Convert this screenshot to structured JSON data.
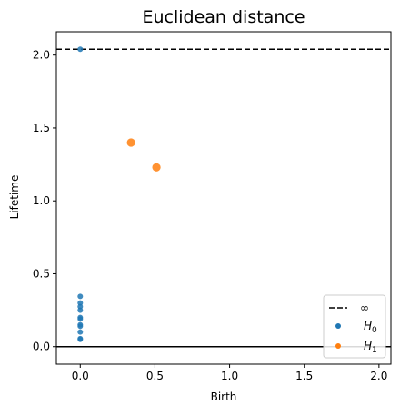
{
  "chart_data": {
    "type": "scatter",
    "title": "Euclidean distance",
    "xlabel": "Birth",
    "ylabel": "Lifetime",
    "xlim": [
      -0.16,
      2.08
    ],
    "ylim": [
      -0.12,
      2.16
    ],
    "xticks": [
      {
        "value": 0.0,
        "label": "0.0"
      },
      {
        "value": 0.5,
        "label": "0.5"
      },
      {
        "value": 1.0,
        "label": "1.0"
      },
      {
        "value": 1.5,
        "label": "1.5"
      },
      {
        "value": 2.0,
        "label": "2.0"
      }
    ],
    "yticks": [
      {
        "value": 0.0,
        "label": "0.0"
      },
      {
        "value": 0.5,
        "label": "0.5"
      },
      {
        "value": 1.0,
        "label": "1.0"
      },
      {
        "value": 1.5,
        "label": "1.5"
      },
      {
        "value": 2.0,
        "label": "2.0"
      }
    ],
    "infinity_line": {
      "y": 2.04,
      "style": "dashed",
      "color": "#000000",
      "label": "∞"
    },
    "zero_line": {
      "y": 0.0,
      "style": "solid",
      "color": "#000000"
    },
    "series": [
      {
        "name": "H0",
        "name_base": "H",
        "name_sub": "0",
        "color": "#1f77b4",
        "points": [
          {
            "x": 0.0,
            "y": 2.04
          },
          {
            "x": 0.0,
            "y": 0.345
          },
          {
            "x": 0.0,
            "y": 0.3
          },
          {
            "x": 0.0,
            "y": 0.275
          },
          {
            "x": 0.0,
            "y": 0.25
          },
          {
            "x": 0.0,
            "y": 0.2
          },
          {
            "x": 0.0,
            "y": 0.19
          },
          {
            "x": 0.0,
            "y": 0.15
          },
          {
            "x": 0.0,
            "y": 0.14
          },
          {
            "x": 0.0,
            "y": 0.1
          },
          {
            "x": 0.0,
            "y": 0.055
          },
          {
            "x": 0.0,
            "y": 0.05
          }
        ]
      },
      {
        "name": "H1",
        "name_base": "H",
        "name_sub": "1",
        "color": "#ff7f0e",
        "points": [
          {
            "x": 0.34,
            "y": 1.4
          },
          {
            "x": 0.51,
            "y": 1.23
          }
        ]
      }
    ],
    "legend": {
      "position": "lower-right"
    },
    "grid": false
  }
}
